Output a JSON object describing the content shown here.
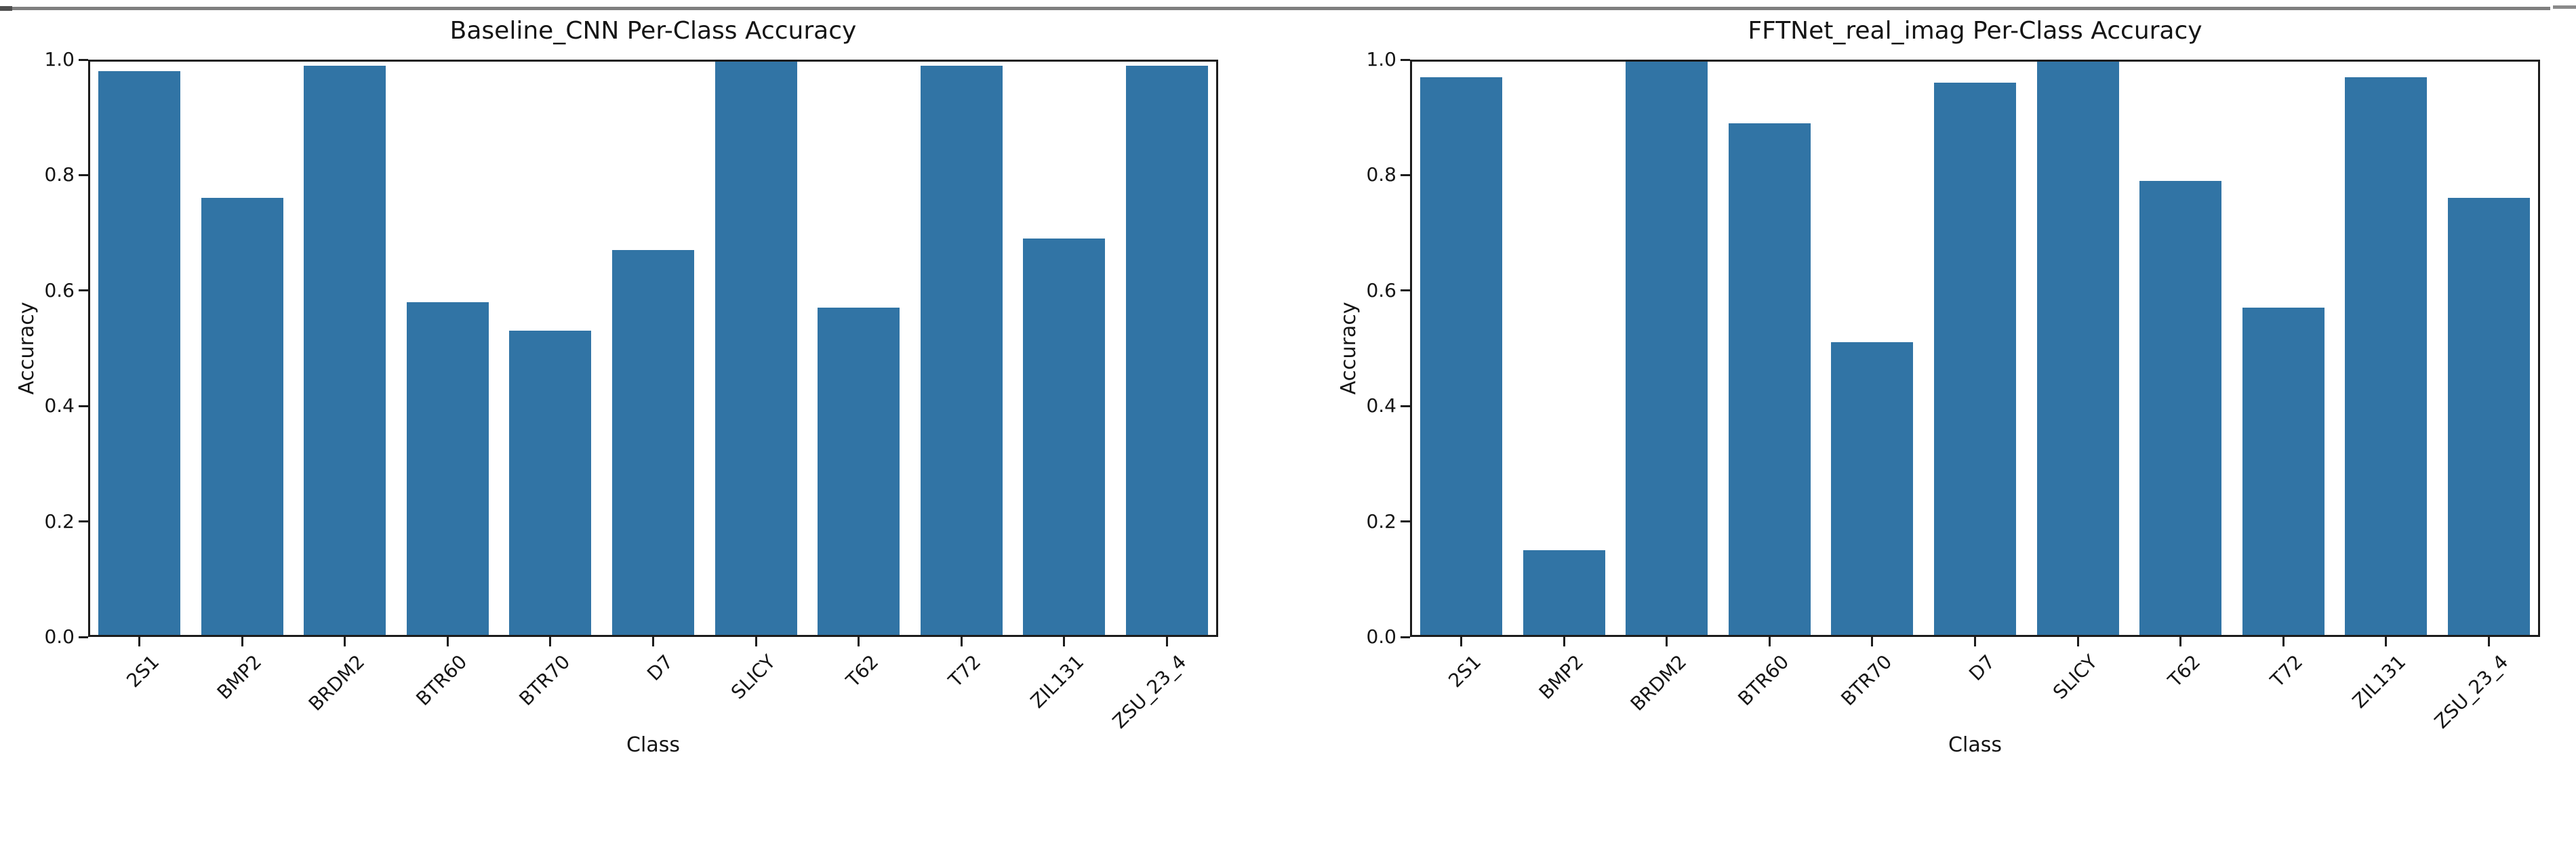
{
  "colors": {
    "bar": "#3174a5",
    "axis": "#1c1c1c",
    "window_border": "#7f7f7f",
    "window_border_dark": "#4f4f4f"
  },
  "chart_data": [
    {
      "type": "bar",
      "title": "Baseline_CNN Per-Class Accuracy",
      "xlabel": "Class",
      "ylabel": "Accuracy",
      "categories": [
        "2S1",
        "BMP2",
        "BRDM2",
        "BTR60",
        "BTR70",
        "D7",
        "SLICY",
        "T62",
        "T72",
        "ZIL131",
        "ZSU_23_4"
      ],
      "values": [
        0.98,
        0.76,
        0.99,
        0.58,
        0.53,
        0.67,
        1.0,
        0.57,
        0.99,
        0.69,
        0.99
      ],
      "ylim": [
        0.0,
        1.0
      ],
      "ytick_labels": [
        "0.0",
        "0.2",
        "0.4",
        "0.6",
        "0.8",
        "1.0"
      ],
      "grid": false,
      "legend_position": "none"
    },
    {
      "type": "bar",
      "title": "FFTNet_real_imag Per-Class Accuracy",
      "xlabel": "Class",
      "ylabel": "Accuracy",
      "categories": [
        "2S1",
        "BMP2",
        "BRDM2",
        "BTR60",
        "BTR70",
        "D7",
        "SLICY",
        "T62",
        "T72",
        "ZIL131",
        "ZSU_23_4"
      ],
      "values": [
        0.97,
        0.15,
        1.0,
        0.89,
        0.51,
        0.96,
        1.0,
        0.79,
        0.57,
        0.97,
        0.76
      ],
      "ylim": [
        0.0,
        1.0
      ],
      "ytick_labels": [
        "0.0",
        "0.2",
        "0.4",
        "0.6",
        "0.8",
        "1.0"
      ],
      "grid": false,
      "legend_position": "none"
    }
  ]
}
